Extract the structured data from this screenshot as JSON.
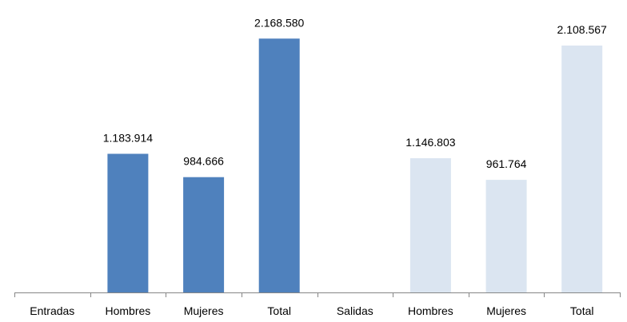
{
  "chart_data": {
    "type": "bar",
    "categories": [
      "Entradas",
      "Hombres",
      "Mujeres",
      "Total",
      "Salidas",
      "Hombres",
      "Mujeres",
      "Total"
    ],
    "values": [
      null,
      1183914,
      984666,
      2168580,
      null,
      1146803,
      961764,
      2108567
    ],
    "data_labels": [
      "",
      "1.183.914",
      "984.666",
      "2.168.580",
      "",
      "1.146.803",
      "961.764",
      "2.108.567"
    ],
    "bar_colors": [
      "#4f81bd",
      "#4f81bd",
      "#4f81bd",
      "#4f81bd",
      "#dbe5f1",
      "#dbe5f1",
      "#dbe5f1",
      "#dbe5f1"
    ],
    "title": "",
    "xlabel": "",
    "ylabel": "",
    "ylim": [
      0,
      2300000
    ],
    "grid": false,
    "legend": "none"
  }
}
